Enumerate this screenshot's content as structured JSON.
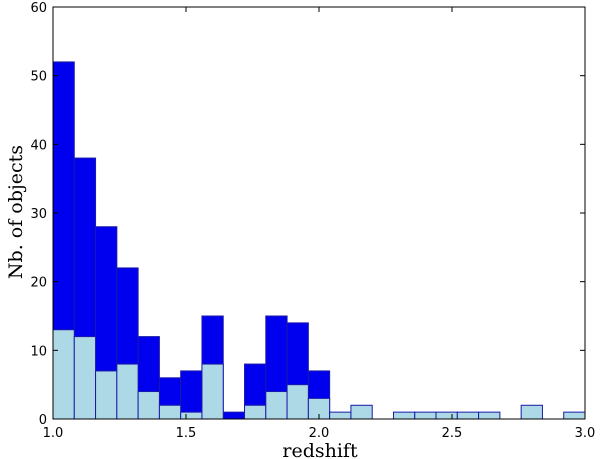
{
  "chart_data": {
    "type": "bar",
    "title": "",
    "xlabel": "redshift",
    "ylabel": "Nb. of objects",
    "xlim": [
      1.0,
      3.0
    ],
    "ylim": [
      0,
      60
    ],
    "xticks": [
      1.0,
      1.5,
      2.0,
      2.5,
      3.0
    ],
    "xtick_labels": [
      "1.0",
      "1.5",
      "2.0",
      "2.5",
      "3.0"
    ],
    "yticks": [
      0,
      10,
      20,
      30,
      40,
      50,
      60
    ],
    "ytick_labels": [
      "0",
      "10",
      "20",
      "30",
      "40",
      "50",
      "60"
    ],
    "grid": false,
    "bin_width": 0.08,
    "bins_left": [
      1.0,
      1.08,
      1.16,
      1.24,
      1.32,
      1.4,
      1.48,
      1.56,
      1.64,
      1.72,
      1.8,
      1.88,
      1.96,
      2.04,
      2.12,
      2.2,
      2.28,
      2.36,
      2.44,
      2.52,
      2.6,
      2.68,
      2.76,
      2.84,
      2.92
    ],
    "series": [
      {
        "color": "#0000ee",
        "values": [
          52,
          38,
          28,
          22,
          12,
          6,
          7,
          15,
          1,
          8,
          15,
          14,
          7,
          0,
          0,
          0,
          0,
          0,
          0,
          0,
          0,
          0,
          0,
          0,
          0
        ]
      },
      {
        "color": "#add8e6",
        "values": [
          13,
          12,
          7,
          8,
          4,
          2,
          1,
          8,
          0,
          2,
          4,
          5,
          3,
          1,
          2,
          0,
          1,
          1,
          1,
          1,
          1,
          0,
          2,
          0,
          1
        ]
      }
    ]
  }
}
